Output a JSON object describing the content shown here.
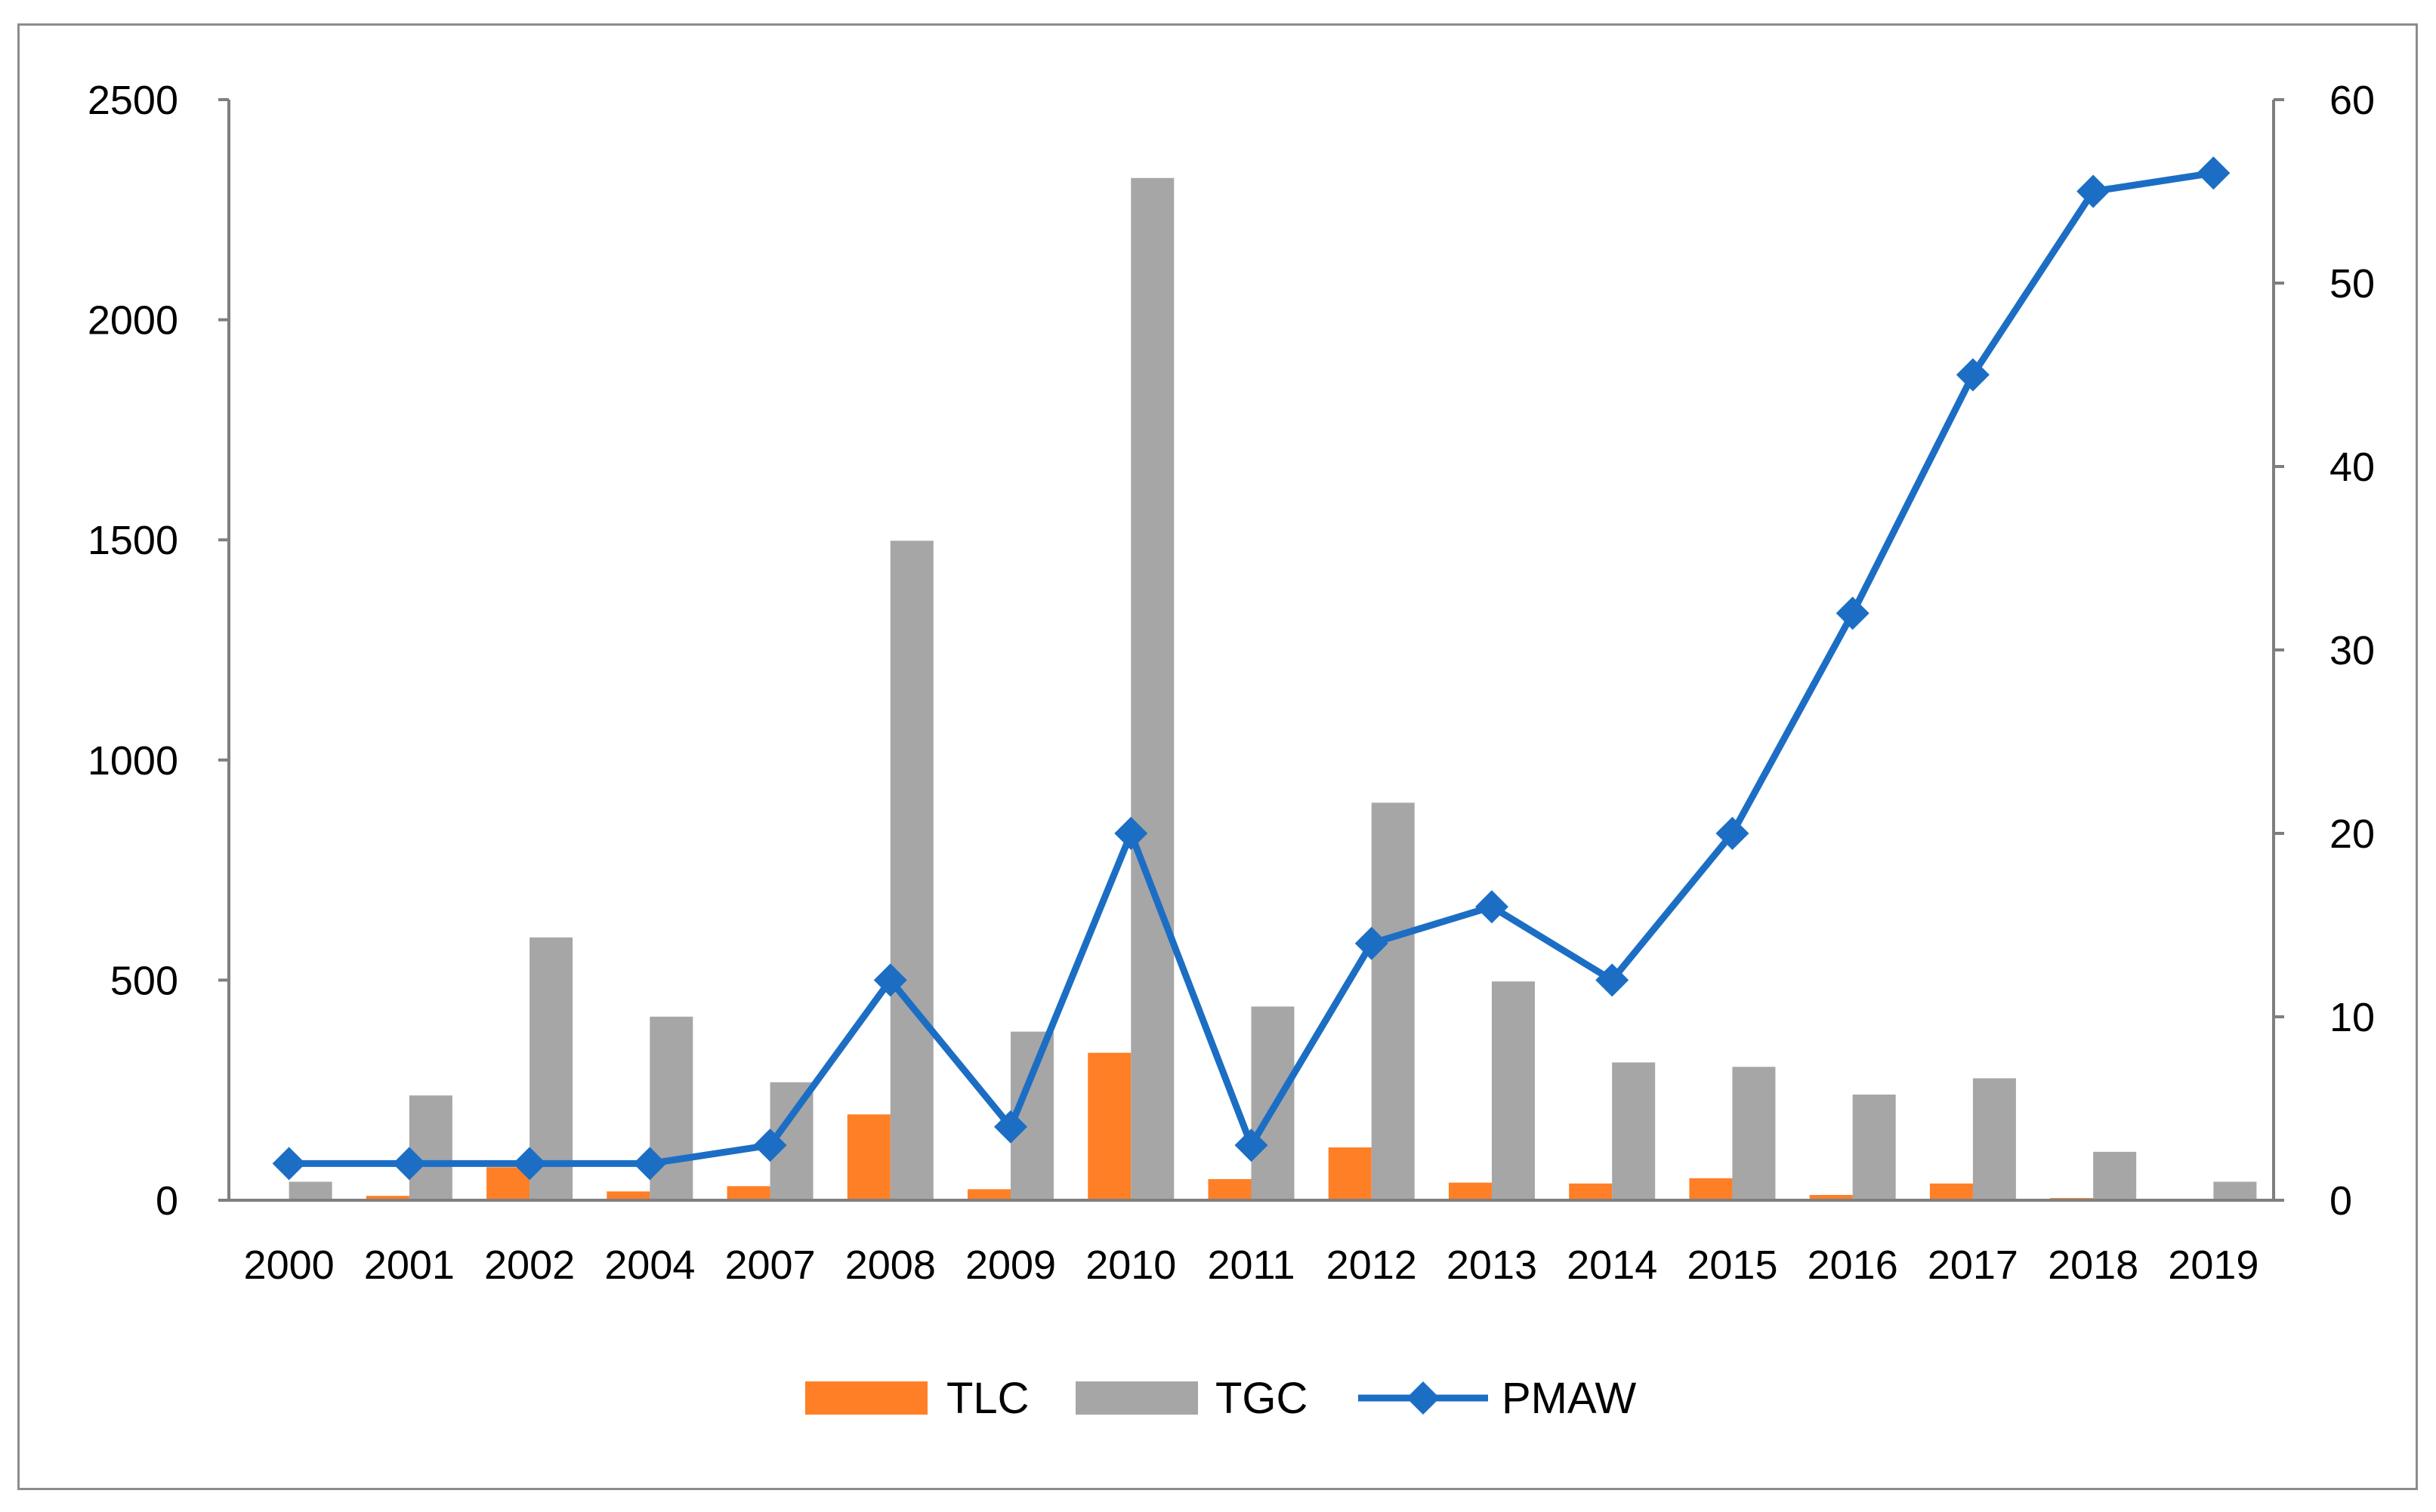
{
  "chart_data": {
    "type": "bar+line",
    "title": "",
    "xlabel": "",
    "ylabel": "",
    "y2label": "",
    "categories": [
      "2000",
      "2001",
      "2002",
      "2004",
      "2007",
      "2008",
      "2009",
      "2010",
      "2011",
      "2012",
      "2013",
      "2014",
      "2015",
      "2016",
      "2017",
      "2018",
      "2019"
    ],
    "series": [
      {
        "name": "TLC",
        "kind": "bar",
        "axis": "left",
        "color": "#FF7F27",
        "values": [
          0,
          10,
          75,
          20,
          32,
          195,
          25,
          335,
          48,
          120,
          40,
          38,
          50,
          12,
          38,
          5,
          0
        ]
      },
      {
        "name": "TGC",
        "kind": "bar",
        "axis": "left",
        "color": "#A6A6A6",
        "values": [
          42,
          238,
          597,
          417,
          268,
          1498,
          383,
          2322,
          440,
          903,
          497,
          313,
          303,
          240,
          277,
          110,
          42
        ]
      },
      {
        "name": "PMAW",
        "kind": "line",
        "axis": "right",
        "color": "#1C6EC4",
        "marker": "diamond",
        "values": [
          2,
          2,
          2,
          2,
          3,
          12,
          4,
          20,
          3,
          14,
          16,
          12,
          20,
          32,
          45,
          55,
          56
        ]
      }
    ],
    "y_left": {
      "min": 0,
      "max": 2500,
      "ticks": [
        "0",
        "500",
        "1000",
        "1500",
        "2000",
        "2500"
      ]
    },
    "y_right": {
      "min": 0,
      "max": 60,
      "ticks": [
        "0",
        "10",
        "20",
        "30",
        "40",
        "50",
        "60"
      ]
    },
    "legend": {
      "position": "bottom",
      "entries": [
        "TLC",
        "TGC",
        "PMAW"
      ]
    },
    "grid": false
  }
}
